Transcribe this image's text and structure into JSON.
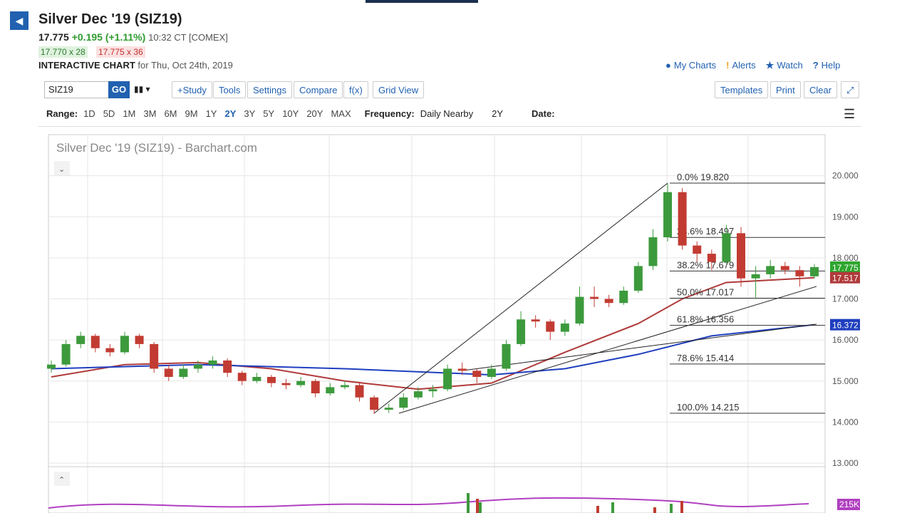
{
  "header": {
    "title": "Silver Dec '19 (SIZ19)",
    "last": "17.775",
    "change": "+0.195 (+1.11%)",
    "time": "10:32 CT [COMEX]",
    "bid": "17.770 x 28",
    "ask": "17.775 x 36",
    "chart_label": "INTERACTIVE CHART",
    "chart_date": "for Thu, Oct 24th, 2019"
  },
  "links": [
    "My Charts",
    "Alerts",
    "Watch",
    "Help"
  ],
  "toolbar": {
    "symbol": "SIZ19",
    "go": "GO",
    "left": [
      "+Study",
      "Tools",
      "Settings",
      "Compare",
      "f(x)",
      "Grid View"
    ],
    "right": [
      "Templates",
      "Print",
      "Clear"
    ]
  },
  "range": {
    "label": "Range:",
    "options": [
      "1D",
      "5D",
      "1M",
      "3M",
      "6M",
      "9M",
      "1Y",
      "2Y",
      "3Y",
      "5Y",
      "10Y",
      "20Y",
      "MAX"
    ],
    "active": "2Y",
    "frequency_label": "Frequency:",
    "frequency": "Daily Nearby",
    "period": "2Y",
    "date_label": "Date:"
  },
  "chart": {
    "type": "candlestick",
    "watermark": "Silver Dec '19 (SIZ19) - Barchart.com",
    "ylim": [
      13,
      21
    ],
    "yticks": [
      {
        "value": 13,
        "label": "13.000"
      },
      {
        "value": 14,
        "label": "14.000"
      },
      {
        "value": 15,
        "label": "15.000"
      },
      {
        "value": 16,
        "label": "16.000"
      },
      {
        "value": 17,
        "label": "17.000"
      },
      {
        "value": 18,
        "label": "18.000"
      },
      {
        "value": 19,
        "label": "19.000"
      },
      {
        "value": 20,
        "label": "20.000"
      }
    ],
    "up_color": "#3c9a3c",
    "down_color": "#c23b32",
    "candles": [
      [
        15.3,
        15.5,
        15.2,
        15.4
      ],
      [
        15.4,
        16.0,
        15.35,
        15.9
      ],
      [
        15.9,
        16.2,
        15.8,
        16.1
      ],
      [
        16.1,
        16.15,
        15.7,
        15.8
      ],
      [
        15.8,
        15.9,
        15.6,
        15.7
      ],
      [
        15.7,
        16.2,
        15.65,
        16.1
      ],
      [
        16.1,
        16.15,
        15.8,
        15.9
      ],
      [
        15.9,
        15.95,
        15.2,
        15.3
      ],
      [
        15.3,
        15.4,
        15.0,
        15.1
      ],
      [
        15.1,
        15.4,
        15.05,
        15.3
      ],
      [
        15.3,
        15.5,
        15.2,
        15.4
      ],
      [
        15.4,
        15.6,
        15.3,
        15.5
      ],
      [
        15.5,
        15.55,
        15.1,
        15.2
      ],
      [
        15.2,
        15.25,
        14.9,
        15.0
      ],
      [
        15.0,
        15.2,
        14.95,
        15.1
      ],
      [
        15.1,
        15.15,
        14.85,
        14.95
      ],
      [
        14.95,
        15.05,
        14.8,
        14.9
      ],
      [
        14.9,
        15.1,
        14.85,
        15.0
      ],
      [
        15.0,
        15.05,
        14.6,
        14.7
      ],
      [
        14.7,
        14.95,
        14.65,
        14.85
      ],
      [
        14.85,
        15.0,
        14.8,
        14.9
      ],
      [
        14.9,
        14.95,
        14.5,
        14.6
      ],
      [
        14.6,
        14.65,
        14.2,
        14.3
      ],
      [
        14.3,
        14.45,
        14.22,
        14.35
      ],
      [
        14.35,
        14.7,
        14.3,
        14.6
      ],
      [
        14.6,
        14.85,
        14.55,
        14.75
      ],
      [
        14.75,
        14.9,
        14.6,
        14.8
      ],
      [
        14.8,
        15.4,
        14.75,
        15.3
      ],
      [
        15.3,
        15.45,
        15.15,
        15.25
      ],
      [
        15.25,
        15.3,
        14.95,
        15.1
      ],
      [
        15.1,
        15.4,
        15.05,
        15.3
      ],
      [
        15.3,
        16.0,
        15.25,
        15.9
      ],
      [
        15.9,
        16.7,
        15.85,
        16.5
      ],
      [
        16.5,
        16.6,
        16.3,
        16.45
      ],
      [
        16.45,
        16.5,
        16.0,
        16.2
      ],
      [
        16.2,
        16.5,
        16.1,
        16.4
      ],
      [
        16.4,
        17.3,
        16.35,
        17.05
      ],
      [
        17.05,
        17.3,
        16.8,
        17.0
      ],
      [
        17.0,
        17.1,
        16.8,
        16.9
      ],
      [
        16.9,
        17.3,
        16.85,
        17.2
      ],
      [
        17.2,
        17.9,
        17.15,
        17.8
      ],
      [
        17.8,
        18.7,
        17.7,
        18.5
      ],
      [
        18.5,
        19.82,
        18.4,
        19.6
      ],
      [
        19.6,
        19.7,
        18.2,
        18.3
      ],
      [
        18.3,
        18.4,
        17.9,
        18.1
      ],
      [
        18.1,
        18.2,
        17.7,
        17.9
      ],
      [
        17.9,
        18.8,
        17.85,
        18.6
      ],
      [
        18.6,
        18.75,
        17.3,
        17.5
      ],
      [
        17.5,
        17.8,
        17.0,
        17.6
      ],
      [
        17.6,
        17.95,
        17.5,
        17.8
      ],
      [
        17.8,
        17.9,
        17.6,
        17.7
      ],
      [
        17.7,
        17.8,
        17.3,
        17.55
      ],
      [
        17.55,
        17.85,
        17.5,
        17.775
      ]
    ],
    "averages": [
      {
        "color": "#b03a3a",
        "x": [
          0,
          5,
          10,
          15,
          20,
          25,
          30,
          35,
          40,
          43,
          46,
          52
        ],
        "values": [
          15.1,
          15.4,
          15.45,
          15.3,
          15.0,
          14.8,
          14.95,
          15.7,
          16.4,
          17.0,
          17.4,
          17.517
        ]
      },
      {
        "color": "#1f3fbf",
        "x": [
          0,
          10,
          20,
          30,
          35,
          40,
          45,
          52
        ],
        "values": [
          15.3,
          15.4,
          15.3,
          15.15,
          15.3,
          15.65,
          16.1,
          16.372
        ]
      }
    ],
    "fib": [
      {
        "value": 19.82,
        "label": "0.0% 19.820"
      },
      {
        "value": 18.497,
        "label": "23.6% 18.497"
      },
      {
        "value": 17.679,
        "label": "38.2% 17.679"
      },
      {
        "value": 17.017,
        "label": "50.0% 17.017"
      },
      {
        "value": 16.356,
        "label": "61.8% 16.356"
      },
      {
        "value": 15.414,
        "label": "78.6% 15.414"
      },
      {
        "value": 14.215,
        "label": "100.0% 14.215"
      }
    ],
    "price_tags": [
      {
        "value": 17.775,
        "label": "17.775",
        "color": "#2ea62e"
      },
      {
        "value": 17.517,
        "label": "17.517",
        "color": "#b03a3a"
      },
      {
        "value": 16.372,
        "label": "16.372",
        "color": "#1f3fbf"
      }
    ],
    "volume_tag": "215K"
  }
}
